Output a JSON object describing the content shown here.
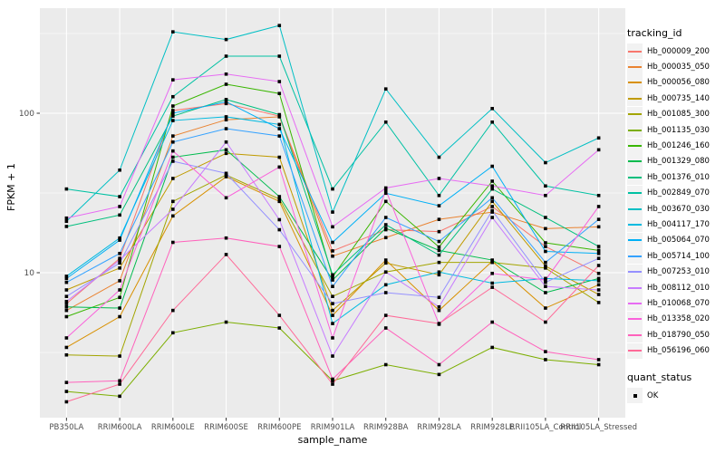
{
  "figure": {
    "background": "#FFFFFF",
    "panel_background": "#EBEBEB",
    "grid_color": "#FFFFFF",
    "tick_color": "#333333",
    "tick_label_color": "#4D4D4D",
    "point_color": "#000000",
    "point_shape": "square"
  },
  "legend": {
    "title": "tracking_id",
    "quant_title": "quant_status",
    "quant_entries": [
      {
        "label": "OK",
        "marker": "black-square"
      }
    ]
  },
  "chart_data": {
    "type": "line",
    "title": "",
    "xlabel": "sample_name",
    "ylabel": "FPKM + 1",
    "y_scale": "log10",
    "ylim": [
      1.23,
      450
    ],
    "y_major_ticks": [
      {
        "label": "100",
        "value": 100
      },
      {
        "label": "10",
        "value": 10
      }
    ],
    "y_minor_gridlines": [
      3.162,
      31.62,
      316.2
    ],
    "grid": "on",
    "legend_position": "right",
    "categories": [
      "PB350LA",
      "RRIM600LA",
      "RRIM600LE",
      "RRIM600SE",
      "RRIM600PE",
      "RRIM901LA",
      "RRIM928BA",
      "RRIM928LA",
      "RRIM928LE",
      "RRII105LA_Control",
      "RRII105LA_Stressed"
    ],
    "series": [
      {
        "name": "Hb_000009_200",
        "color": "#F8766D",
        "values": [
          6.4,
          12.3,
          104,
          115,
          96,
          13.7,
          18.6,
          18.1,
          26,
          14.6,
          9.9
        ]
      },
      {
        "name": "Hb_000035_050",
        "color": "#EA8331",
        "values": [
          5.8,
          8.9,
          72,
          91,
          95,
          12.7,
          16.6,
          21.6,
          24,
          18.9,
          19.4
        ]
      },
      {
        "name": "Hb_000056_080",
        "color": "#D89000",
        "values": [
          3.4,
          5.3,
          22.7,
          40,
          28,
          5.4,
          12.0,
          5.8,
          11.8,
          6.0,
          8.4
        ]
      },
      {
        "name": "Hb_000735_140",
        "color": "#C09B00",
        "values": [
          7.8,
          10.7,
          39,
          56,
          53,
          5.8,
          11.5,
          9.7,
          28,
          11.0,
          7.3
        ]
      },
      {
        "name": "Hb_001085_300",
        "color": "#A3A500",
        "values": [
          3.05,
          3.0,
          28,
          41,
          29,
          7.1,
          10.1,
          11.6,
          11.6,
          10.7,
          6.5
        ]
      },
      {
        "name": "Hb_001135_030",
        "color": "#7CAE00",
        "values": [
          1.8,
          1.68,
          4.2,
          4.9,
          4.5,
          2.1,
          2.65,
          2.3,
          3.4,
          2.85,
          2.65
        ]
      },
      {
        "name": "Hb_001246_160",
        "color": "#39B600",
        "values": [
          5.3,
          7.0,
          111,
          152,
          133,
          9.4,
          28,
          14.5,
          37.5,
          15.4,
          13.8
        ]
      },
      {
        "name": "Hb_001329_080",
        "color": "#00BB4E",
        "values": [
          6.1,
          6.0,
          53,
          59,
          30,
          9.0,
          19,
          13.8,
          12.0,
          7.5,
          9.2
        ]
      },
      {
        "name": "Hb_001376_010",
        "color": "#00BF7D",
        "values": [
          19.5,
          23,
          96,
          122,
          98,
          9.7,
          20,
          12.9,
          33.5,
          22.2,
          14.6
        ]
      },
      {
        "name": "Hb_002849_070",
        "color": "#00C1A3",
        "values": [
          33.5,
          30,
          127,
          228,
          228,
          33.5,
          88,
          30.5,
          88,
          35,
          30.5
        ]
      },
      {
        "name": "Hb_003670_030",
        "color": "#00BFC4",
        "values": [
          21,
          44,
          324,
          290,
          355,
          24,
          142,
          53,
          107,
          49,
          70
        ]
      },
      {
        "name": "Hb_004117_170",
        "color": "#00BAE0",
        "values": [
          9.5,
          16.5,
          90,
          95,
          85,
          4.8,
          8.4,
          10.1,
          8.6,
          9.2,
          8.9
        ]
      },
      {
        "name": "Hb_005064_070",
        "color": "#00B0F6",
        "values": [
          9.2,
          16,
          100,
          118,
          80,
          15.5,
          31.5,
          26.3,
          46.5,
          13.6,
          13.2
        ]
      },
      {
        "name": "Hb_005714_100",
        "color": "#35A2FF",
        "values": [
          8.7,
          13.2,
          66,
          80,
          72,
          8.2,
          22.2,
          15.7,
          29.5,
          11.6,
          21.6
        ]
      },
      {
        "name": "Hb_007253_010",
        "color": "#9590FF",
        "values": [
          7.1,
          11.5,
          50,
          42,
          18.6,
          6.4,
          7.5,
          7.0,
          24.5,
          8.7,
          12.3
        ]
      },
      {
        "name": "Hb_008112_010",
        "color": "#C77CFF",
        "values": [
          6.6,
          12,
          25,
          66,
          21.5,
          3.0,
          10.1,
          6.1,
          22.2,
          8.2,
          7.8
        ]
      },
      {
        "name": "Hb_010068_070",
        "color": "#E76BF3",
        "values": [
          22,
          26,
          162,
          176,
          158,
          19.4,
          34,
          39,
          35,
          30.5,
          59
        ]
      },
      {
        "name": "Hb_013358_020",
        "color": "#FA62DB",
        "values": [
          3.9,
          7.8,
          58,
          29.5,
          46,
          3.9,
          33,
          4.75,
          9.9,
          9.0,
          26
        ]
      },
      {
        "name": "Hb_018790_050",
        "color": "#FF62BC",
        "values": [
          2.05,
          2.1,
          15.5,
          16.5,
          14.6,
          2.15,
          4.5,
          2.65,
          4.9,
          3.2,
          2.85
        ]
      },
      {
        "name": "Hb_056196_060",
        "color": "#FF6A98",
        "values": [
          1.55,
          2.0,
          5.8,
          13,
          5.4,
          2.0,
          5.4,
          4.8,
          8.1,
          4.9,
          11.1
        ]
      }
    ]
  }
}
